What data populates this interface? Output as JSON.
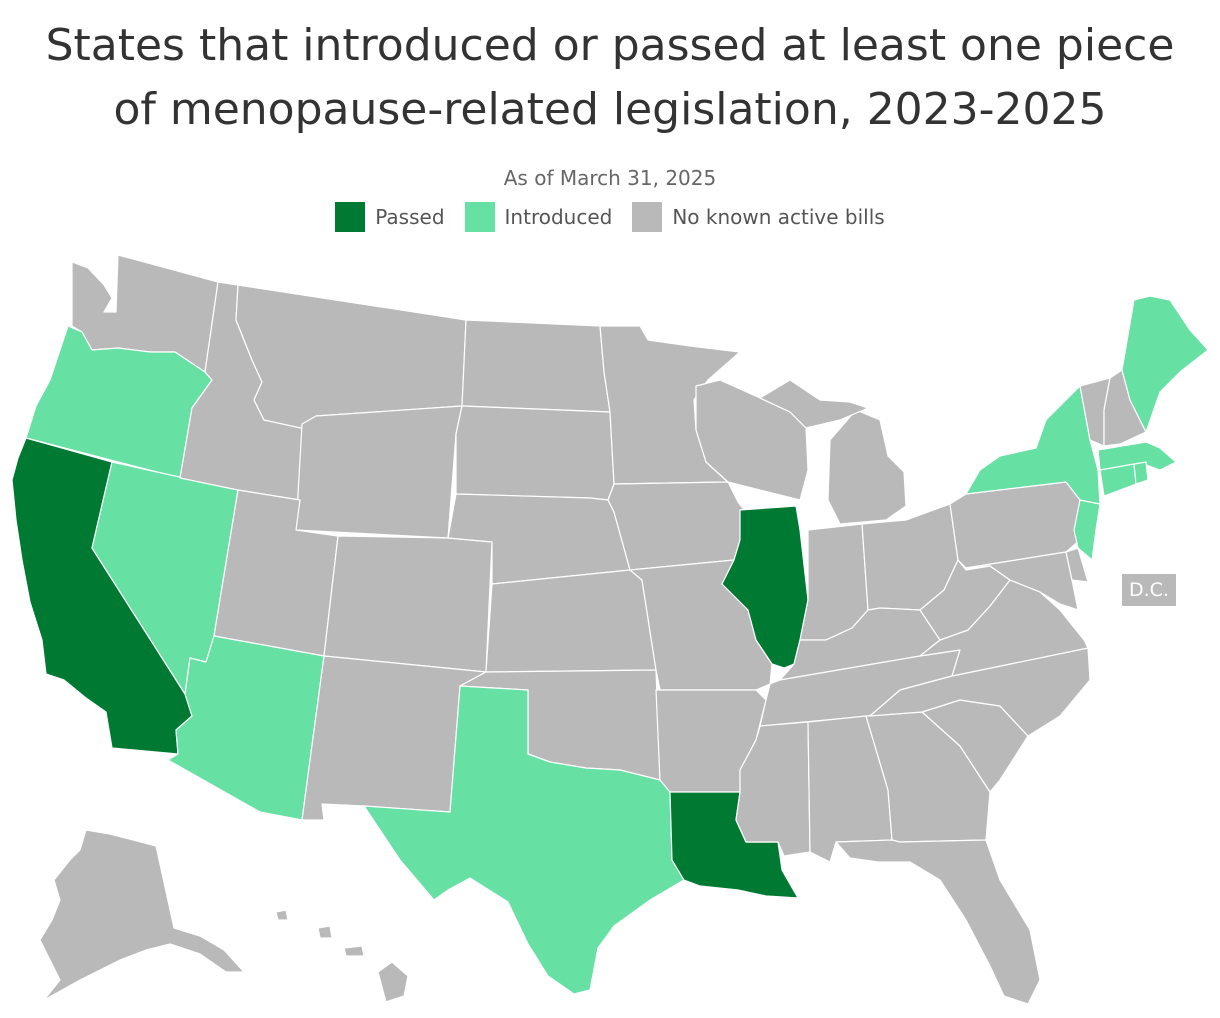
{
  "title_line1": "States that introduced or passed at least one piece",
  "title_line2": "of menopause-related legislation, 2023-2025",
  "subtitle": "As of March 31, 2025",
  "legend": [
    {
      "label": "Passed",
      "color": "#007a33"
    },
    {
      "label": "Introduced",
      "color": "#66e0a3"
    },
    {
      "label": "No known active bills",
      "color": "#b9b9b9"
    }
  ],
  "dc_label": "D.C.",
  "states": {
    "passed": [
      "California",
      "Illinois",
      "Louisiana"
    ],
    "introduced": [
      "Oregon",
      "Nevada",
      "Arizona",
      "Texas",
      "New York",
      "New Jersey",
      "Connecticut",
      "Rhode Island",
      "Massachusetts",
      "Maine"
    ],
    "no_known_active_bills": [
      "Washington",
      "Idaho",
      "Montana",
      "Wyoming",
      "Utah",
      "Colorado",
      "New Mexico",
      "North Dakota",
      "South Dakota",
      "Nebraska",
      "Kansas",
      "Oklahoma",
      "Minnesota",
      "Iowa",
      "Missouri",
      "Arkansas",
      "Wisconsin",
      "Michigan",
      "Indiana",
      "Ohio",
      "Kentucky",
      "Tennessee",
      "Mississippi",
      "Alabama",
      "Georgia",
      "Florida",
      "South Carolina",
      "North Carolina",
      "Virginia",
      "West Virginia",
      "Pennsylvania",
      "Maryland",
      "Delaware",
      "Vermont",
      "New Hampshire",
      "Alaska",
      "Hawaii",
      "District of Columbia"
    ]
  }
}
